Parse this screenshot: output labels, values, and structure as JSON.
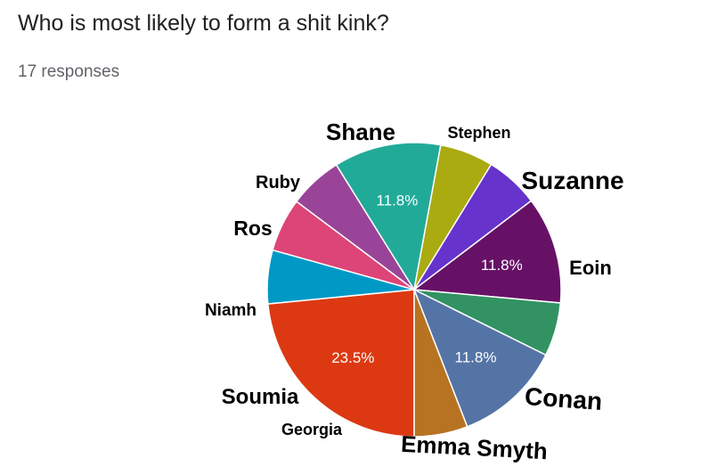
{
  "header": {
    "question": "Who is most likely to form a shit kink?",
    "responses": "17 responses"
  },
  "chart_data": {
    "type": "pie",
    "categories": [
      "Conan",
      "Emma Smyth",
      "Georgia",
      "Soumia",
      "Niamh",
      "Ros",
      "Ruby",
      "Shane",
      "Stephen",
      "Suzanne",
      "Eoin"
    ],
    "values": [
      23.5,
      5.9,
      5.9,
      5.9,
      11.8,
      5.9,
      5.9,
      11.8,
      5.9,
      11.8,
      5.9
    ],
    "labels": [
      "23.5%",
      "",
      "",
      "",
      "11.8%",
      "",
      "",
      "11.8%",
      "",
      "11.8%",
      ""
    ],
    "colors": [
      "#dc3912",
      "#0099c6",
      "#dd4477",
      "#994499",
      "#22aa99",
      "#aaaa11",
      "#6633cc",
      "#661166",
      "#329262",
      "#5574a6",
      "#b77322"
    ]
  }
}
